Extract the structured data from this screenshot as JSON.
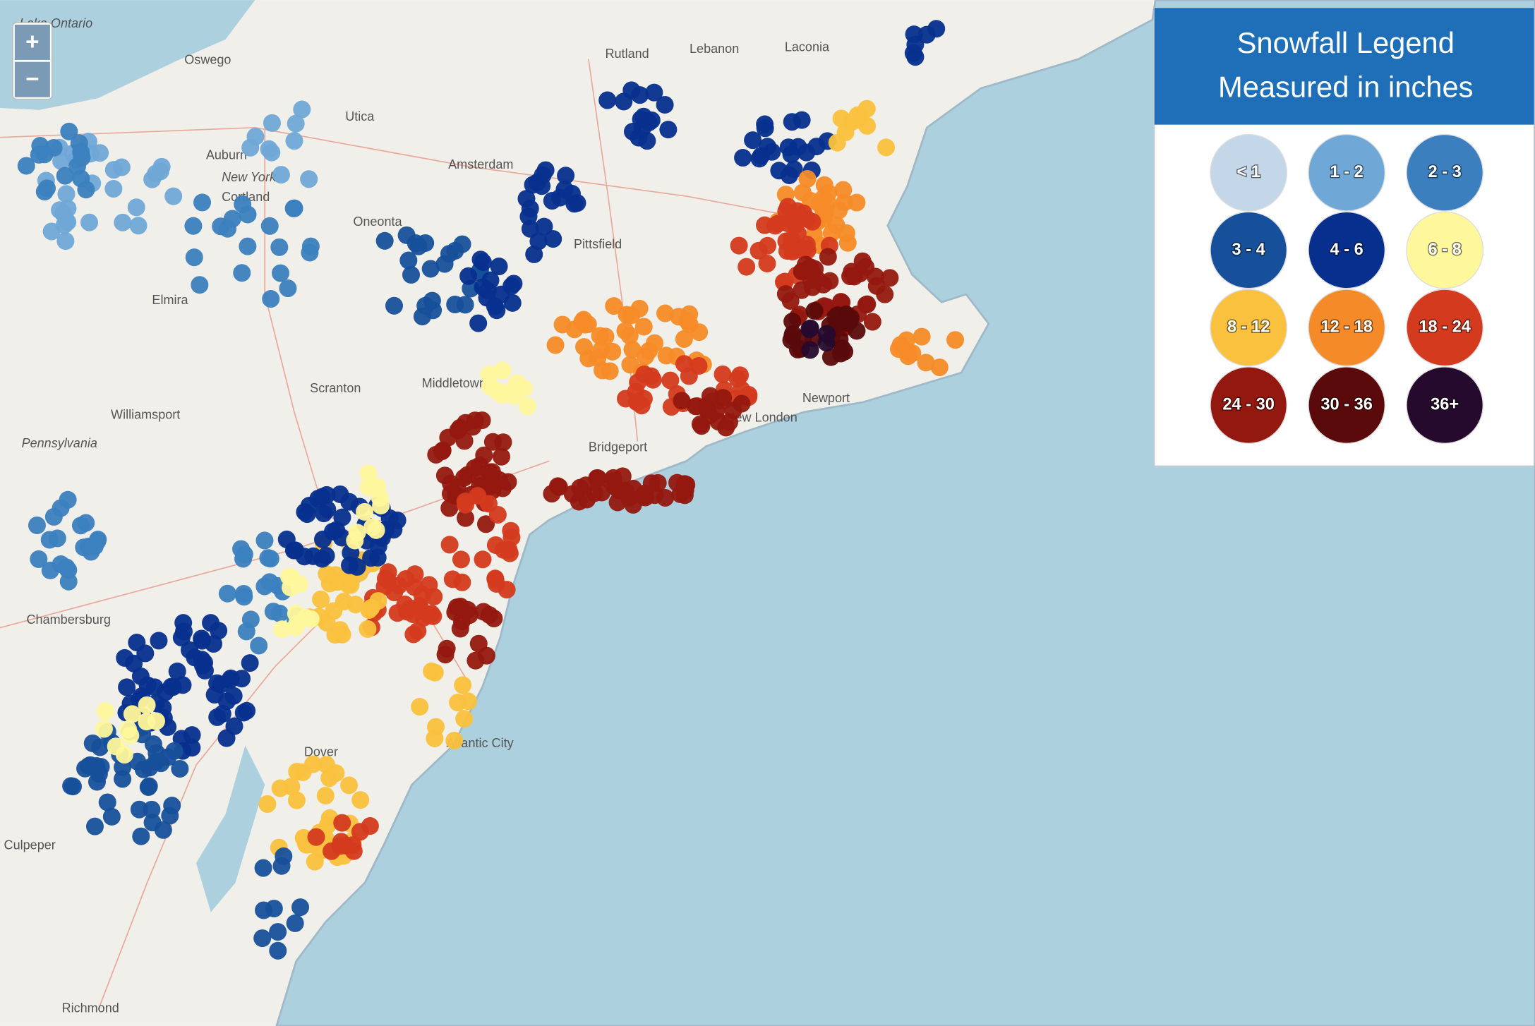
{
  "zoom_controls": {
    "zoom_in": "+",
    "zoom_out": "−"
  },
  "legend": {
    "title": "Snowfall Legend",
    "subtitle": "Measured in inches",
    "items": [
      {
        "label": "< 1",
        "color": "#c3d7e8"
      },
      {
        "label": "1 - 2",
        "color": "#6fa8d6"
      },
      {
        "label": "2 - 3",
        "color": "#3b7fbf"
      },
      {
        "label": "3 - 4",
        "color": "#17509a"
      },
      {
        "label": "4 - 6",
        "color": "#062f8e"
      },
      {
        "label": "6 - 8",
        "color": "#fff79c"
      },
      {
        "label": "8 - 12",
        "color": "#f9c13d"
      },
      {
        "label": "12 - 18",
        "color": "#f58b28"
      },
      {
        "label": "18 - 24",
        "color": "#d43a1d"
      },
      {
        "label": "24 - 30",
        "color": "#93180f"
      },
      {
        "label": "30 - 36",
        "color": "#5a0a0a"
      },
      {
        "label": "36+",
        "color": "#260a2e"
      }
    ]
  },
  "map": {
    "labels": [
      "Lake Ontario",
      "Oswego",
      "Utica",
      "Auburn",
      "New York",
      "Cortland",
      "Oneonta",
      "Elmira",
      "Scranton",
      "Williamsport",
      "Pennsylvania",
      "Chambersburg",
      "Culpeper",
      "Richmond",
      "Rutland",
      "Lebanon",
      "Laconia",
      "Amsterdam",
      "Middletown",
      "Bridgeport",
      "New London",
      "Newport",
      "Atlantic City",
      "Dover",
      "Pittsfield"
    ]
  }
}
